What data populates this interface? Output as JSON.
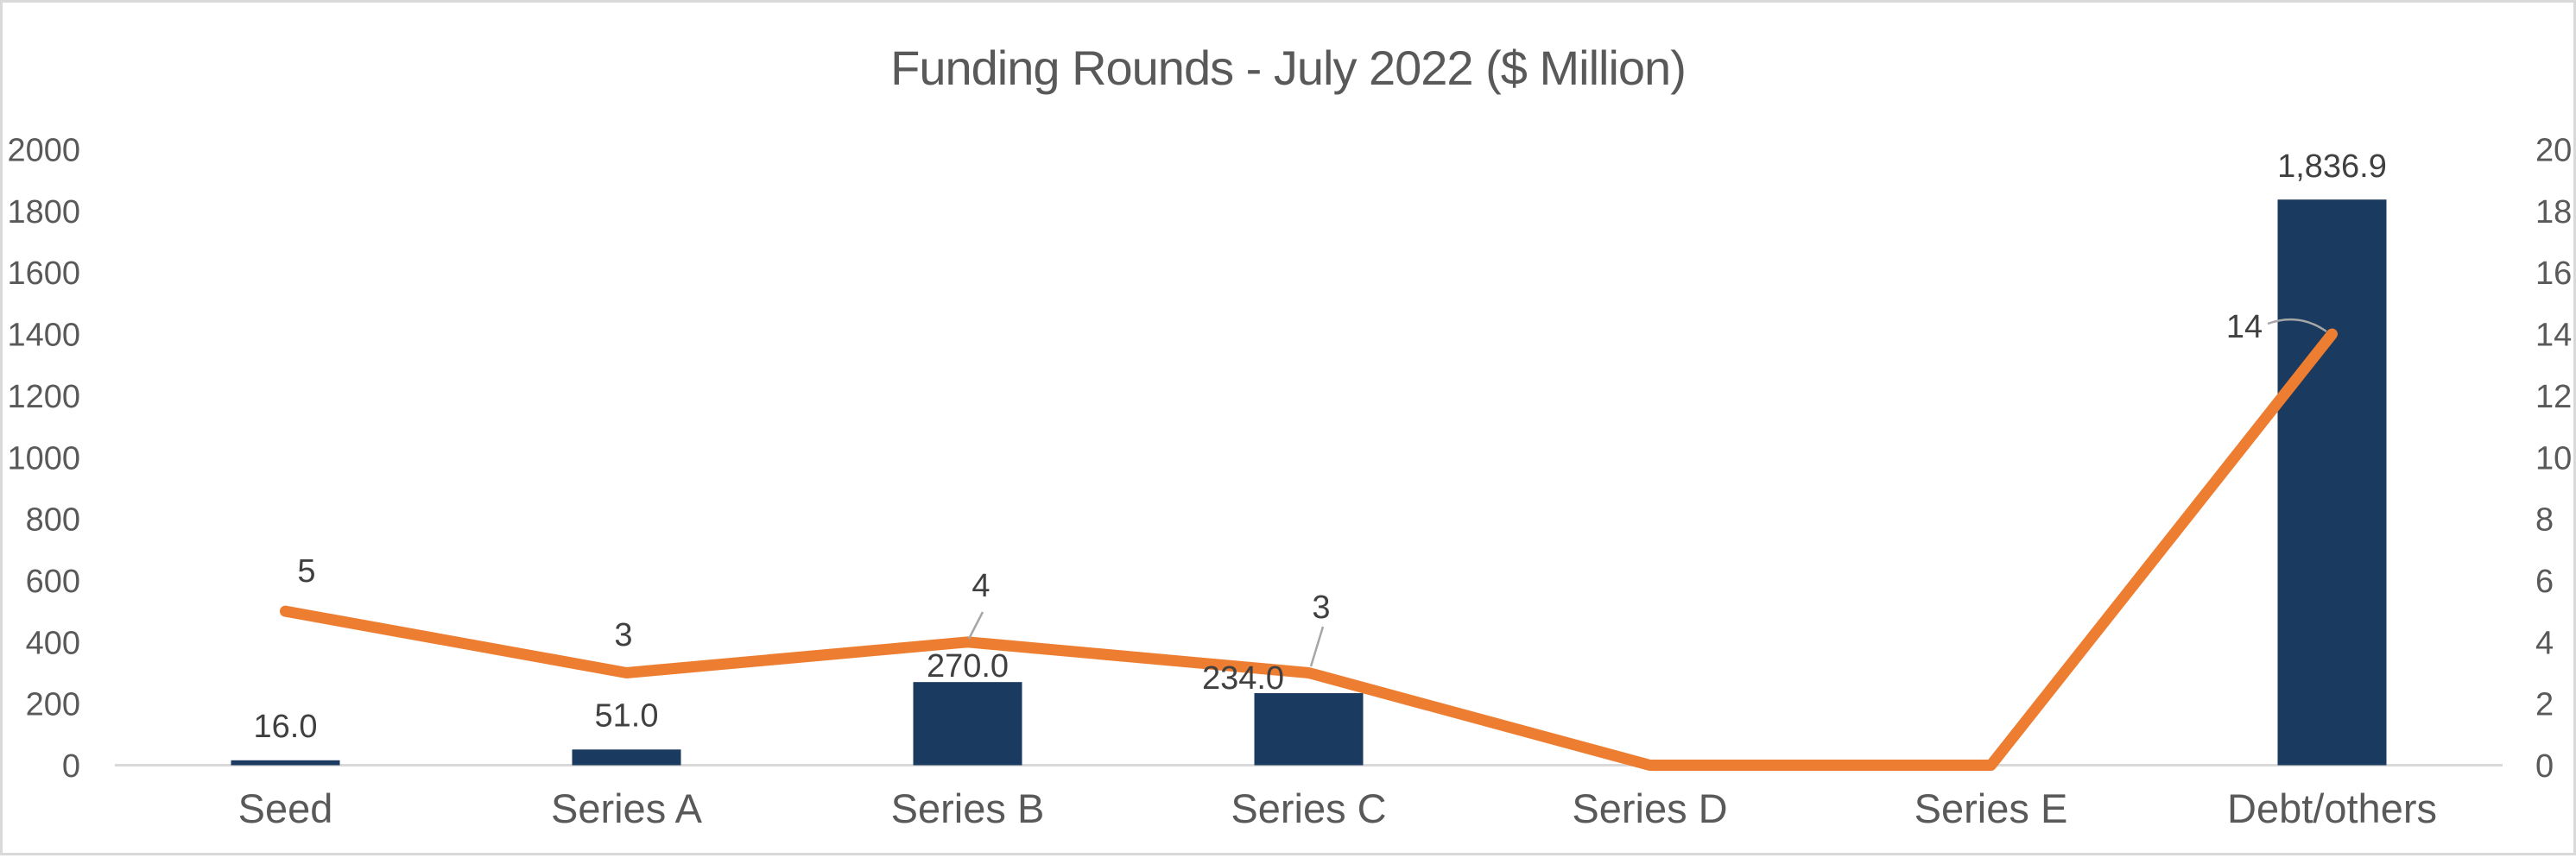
{
  "chart": {
    "title": "Funding Rounds - July 2022 ($ Million)"
  },
  "chart_data": {
    "type": "combo-bar-line",
    "title": "Funding Rounds - July 2022 ($ Million)",
    "categories": [
      "Seed",
      "Series A",
      "Series B",
      "Series C",
      "Series D",
      "Series E",
      "Debt/others"
    ],
    "series": [
      {
        "type": "bar",
        "axis": "left",
        "color": "#1b3a5f",
        "values": [
          16.0,
          51.0,
          270.0,
          234.0,
          null,
          null,
          1836.9
        ],
        "data_labels": [
          "16.0",
          "51.0",
          "270.0",
          "234.0",
          "",
          "",
          "1,836.9"
        ]
      },
      {
        "type": "line",
        "axis": "right",
        "color": "#ed7d31",
        "values": [
          5,
          3,
          4,
          3,
          0,
          0,
          14
        ],
        "data_labels": [
          "5",
          "3",
          "4",
          "3",
          "",
          "",
          "14"
        ]
      }
    ],
    "left_axis": {
      "min": 0,
      "max": 2000,
      "ticks": [
        0,
        200,
        400,
        600,
        800,
        1000,
        1200,
        1400,
        1600,
        1800,
        2000
      ],
      "tick_labels": [
        "0",
        "200",
        "400",
        "600",
        "800",
        "1000",
        "1200",
        "1400",
        "1600",
        "1800",
        "2000"
      ]
    },
    "right_axis": {
      "min": 0,
      "max": 20,
      "ticks": [
        0,
        2,
        4,
        6,
        8,
        10,
        12,
        14,
        16,
        18,
        20
      ],
      "tick_labels": [
        "0",
        "2",
        "4",
        "6",
        "8",
        "10",
        "12",
        "14",
        "16",
        "18",
        "20"
      ]
    },
    "grid": false,
    "legend": "none",
    "text_color": "#595959",
    "data_label_color": "#404040",
    "axis_line_color": "#d9d9d9",
    "leader_line_color": "#a6a6a6"
  }
}
